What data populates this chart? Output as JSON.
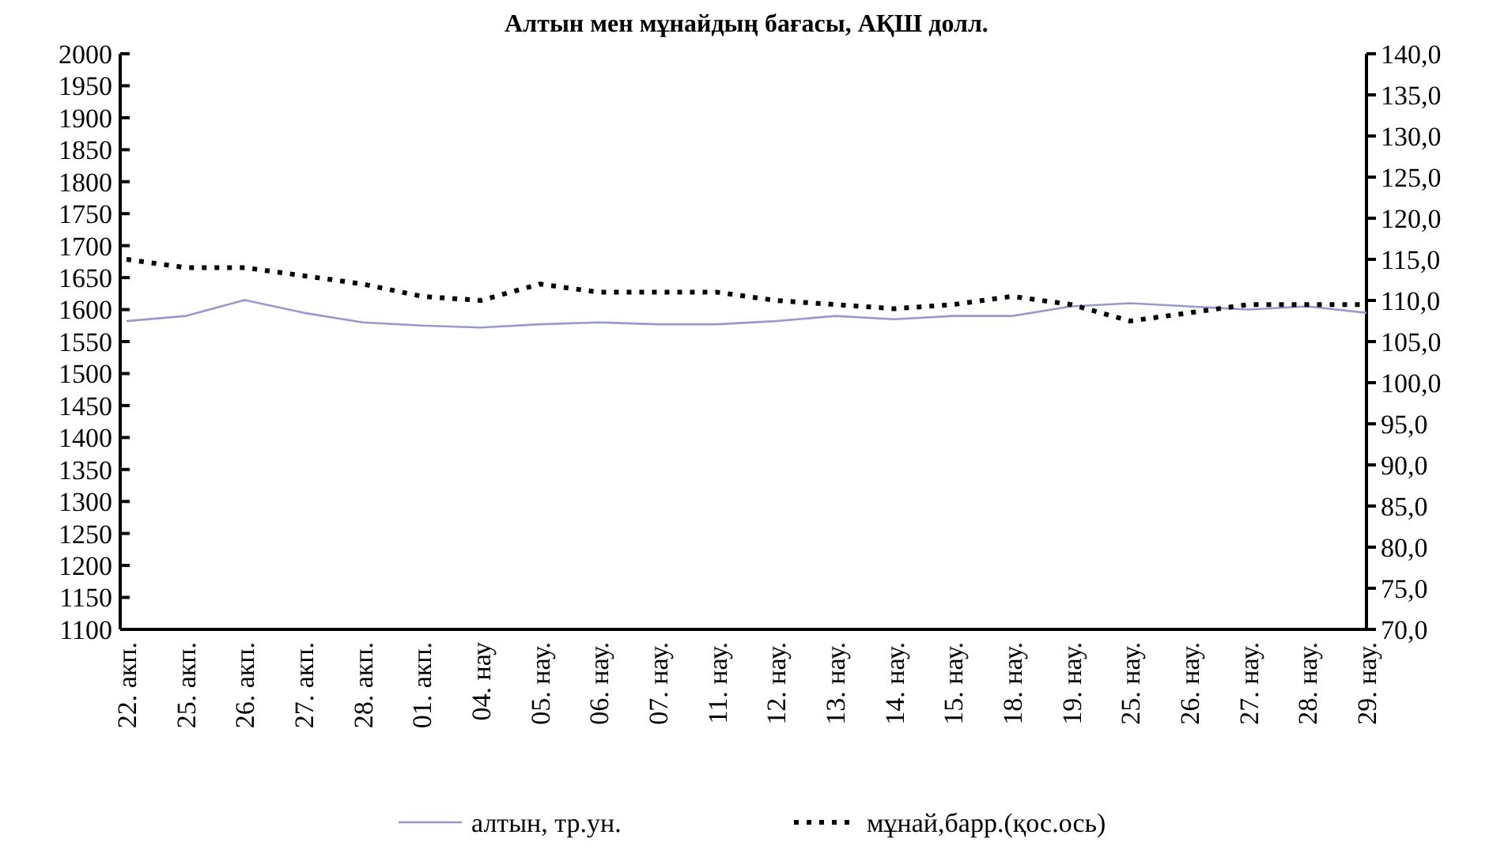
{
  "chart_data": {
    "type": "line",
    "title": "Алтын мен мұнайдың бағасы, АҚШ долл.",
    "categories": [
      "22. акп.",
      "25. акп.",
      "26. акп.",
      "27. акп.",
      "28. акп.",
      "01. акп.",
      "04. нау",
      "05. нау.",
      "06. нау.",
      "07. нау.",
      "11. нау.",
      "12. нау.",
      "13. нау.",
      "14. нау.",
      "15. нау.",
      "18. нау.",
      "19. нау.",
      "25. нау.",
      "26. нау.",
      "27. нау.",
      "28. нау.",
      "29. нау."
    ],
    "series": [
      {
        "name": "алтын, тр.ун.",
        "color": "#9999cc",
        "line_style": "solid",
        "values": [
          1582,
          1590,
          1615,
          1595,
          1580,
          1575,
          1572,
          1577,
          1580,
          1577,
          1577,
          1582,
          1590,
          1585,
          1590,
          1590,
          1605,
          1610,
          1605,
          1600,
          1605,
          1595
        ]
      },
      {
        "name": "мұнай,барр.(қос.ось)",
        "color": "#000000",
        "line_style": "dotted",
        "axis": "y2",
        "values": [
          115,
          114,
          114,
          113,
          112,
          110.5,
          110,
          112,
          111,
          111,
          111,
          110,
          109.5,
          109,
          109.5,
          110.5,
          109.5,
          107.5,
          108.5,
          109.5,
          109.5,
          109.5
        ]
      }
    ],
    "ylim": [
      1100,
      2000
    ],
    "yticks": [
      1100,
      1150,
      1200,
      1250,
      1300,
      1350,
      1400,
      1450,
      1500,
      1550,
      1600,
      1650,
      1700,
      1750,
      1800,
      1850,
      1900,
      1950,
      2000
    ],
    "y2lim": [
      70,
      140
    ],
    "y2ticks": [
      {
        "value": 70,
        "label": "70,0"
      },
      {
        "value": 75,
        "label": "75,0"
      },
      {
        "value": 80,
        "label": "80,0"
      },
      {
        "value": 85,
        "label": "85,0"
      },
      {
        "value": 90,
        "label": "90,0"
      },
      {
        "value": 95,
        "label": "95,0"
      },
      {
        "value": 100,
        "label": "100,0"
      },
      {
        "value": 105,
        "label": "105,0"
      },
      {
        "value": 110,
        "label": "110,0"
      },
      {
        "value": 115,
        "label": "115,0"
      },
      {
        "value": 120,
        "label": "120,0"
      },
      {
        "value": 125,
        "label": "125,0"
      },
      {
        "value": 130,
        "label": "130,0"
      },
      {
        "value": 135,
        "label": "135,0"
      },
      {
        "value": 140,
        "label": "140,0"
      }
    ],
    "grid": false,
    "legend": "bottom"
  }
}
